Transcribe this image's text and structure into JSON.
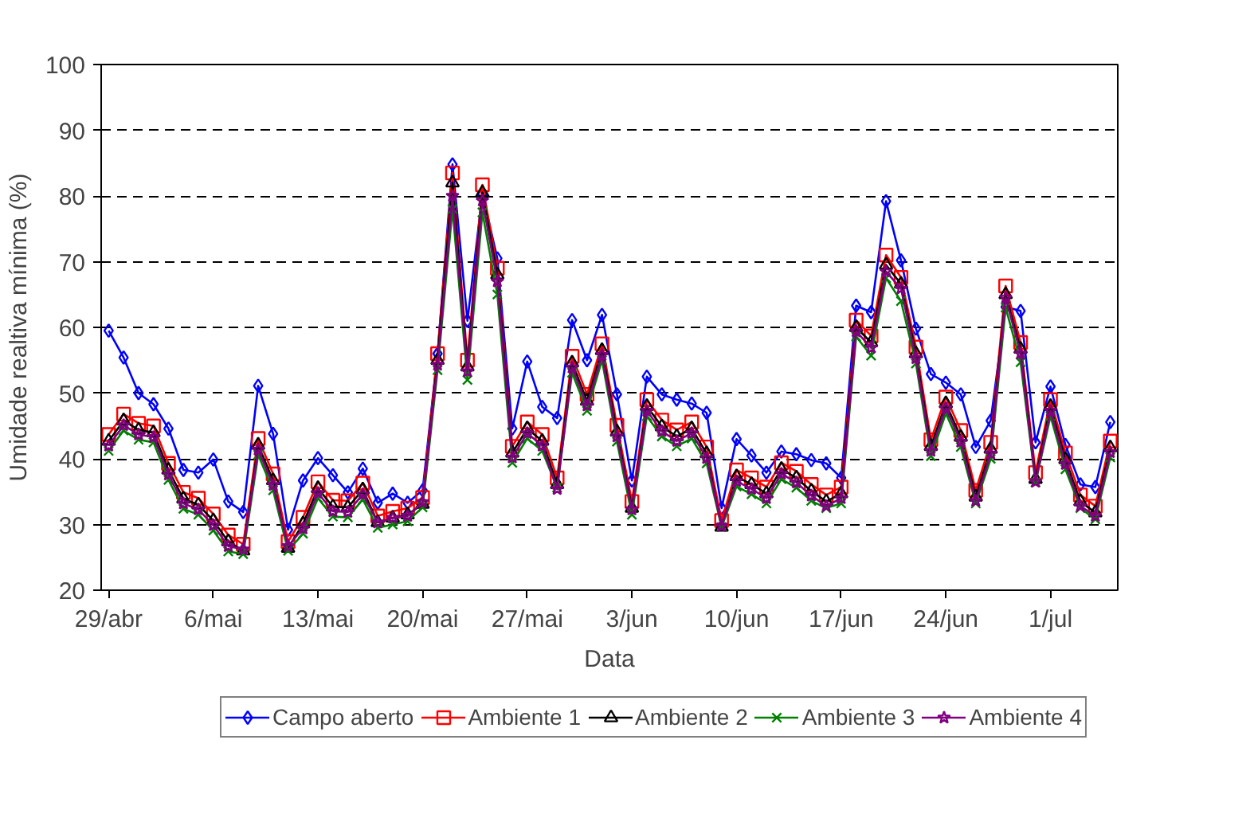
{
  "chart_data": {
    "type": "line",
    "xlabel": "Data",
    "ylabel": "Umidade realtiva mínima (%)",
    "categories": [
      "29/abr",
      null,
      null,
      null,
      null,
      null,
      null,
      "6/mai",
      null,
      null,
      null,
      null,
      null,
      null,
      "13/mai",
      null,
      null,
      null,
      null,
      null,
      null,
      "20/mai",
      null,
      null,
      null,
      null,
      null,
      null,
      "27/mai",
      null,
      null,
      null,
      null,
      null,
      null,
      "3/jun",
      null,
      null,
      null,
      null,
      null,
      null,
      "10/jun",
      null,
      null,
      null,
      null,
      null,
      null,
      "17/jun",
      null,
      null,
      null,
      null,
      null,
      null,
      "24/jun",
      null,
      null,
      null,
      null,
      null,
      null,
      "1/jul",
      null,
      null,
      null,
      null
    ],
    "ylim": [
      20,
      100
    ],
    "yticks": [
      20,
      30,
      40,
      50,
      60,
      70,
      80,
      90,
      100
    ],
    "grid": "y",
    "legend": "bottom",
    "line_style": "solid",
    "series": [
      {
        "name": "Campo aberto",
        "color": "#0000ff",
        "marker": "diamond",
        "values": [
          59.5,
          55.4,
          50,
          48.3,
          44.6,
          38.3,
          37.9,
          39.9,
          33.5,
          31.9,
          51.1,
          43.8,
          29.2,
          36.7,
          40.1,
          37.5,
          34.9,
          38.5,
          33.3,
          34.7,
          33.3,
          35.2,
          56,
          84.8,
          61,
          80.3,
          70.5,
          44.6,
          54.8,
          47.9,
          46.2,
          61.1,
          55,
          61.9,
          49.8,
          36.7,
          52.5,
          49.8,
          49,
          48.4,
          47,
          32.5,
          43,
          40.5,
          37.9,
          41.1,
          40.7,
          39.8,
          39.3,
          37.1,
          63.3,
          62.3,
          79.2,
          70.2,
          59.8,
          52.9,
          51.6,
          49.8,
          41.8,
          45.8,
          63.1,
          62.5,
          42.5,
          51,
          42.1,
          36.1,
          35.7,
          45.6
        ]
      },
      {
        "name": "Ambiente 1",
        "color": "#ff0000",
        "marker": "square",
        "values": [
          43.7,
          46.8,
          45.4,
          45,
          39.3,
          34.9,
          34,
          31.6,
          28.4,
          27,
          43.1,
          37.7,
          27.4,
          31.1,
          36.5,
          33.7,
          33.6,
          36.3,
          31.3,
          32,
          32.5,
          34.1,
          56,
          83.5,
          55,
          81.7,
          69,
          41.9,
          45.6,
          43.7,
          37.1,
          55.6,
          49.8,
          57.5,
          45.1,
          33.5,
          49,
          45.9,
          44.4,
          45.6,
          41.8,
          30.6,
          38.3,
          37.1,
          35.7,
          39.4,
          38.1,
          36.1,
          34.5,
          35.7,
          61.1,
          58.7,
          71,
          67.6,
          57,
          42.9,
          49.4,
          44.3,
          35.2,
          42.5,
          66.3,
          57.7,
          37.9,
          49,
          40.9,
          34.5,
          32.8,
          42.7
        ]
      },
      {
        "name": "Ambiente 2",
        "color": "#000000",
        "marker": "triangle",
        "values": [
          42.7,
          45.8,
          44.4,
          44,
          38.3,
          33.9,
          33,
          30.6,
          27.4,
          26,
          42.1,
          36.7,
          26.4,
          30.1,
          35.5,
          32.7,
          32.6,
          35.3,
          30.3,
          31,
          31.5,
          33.1,
          55,
          82,
          54,
          80.5,
          68,
          40.9,
          44.6,
          42.7,
          36.1,
          54.6,
          48.8,
          56.5,
          44.1,
          32.5,
          48,
          44.9,
          43.4,
          44.6,
          40.8,
          29.6,
          37.3,
          36.1,
          34.7,
          38.4,
          37.1,
          35.1,
          33.5,
          34.7,
          60,
          57.7,
          69.5,
          66.6,
          56,
          41.9,
          48.4,
          43.3,
          34.2,
          41.5,
          65,
          56.7,
          36.9,
          48,
          39.9,
          33.5,
          31.8,
          41.7
        ]
      },
      {
        "name": "Ambiente 3",
        "color": "#008000",
        "marker": "cross",
        "values": [
          41.2,
          44.3,
          42.9,
          42.5,
          36.8,
          32.4,
          31.5,
          29.1,
          25.9,
          25.5,
          40.6,
          35.2,
          26,
          28.6,
          34,
          31.2,
          31.1,
          33.8,
          29.5,
          30,
          30.5,
          32.6,
          53.5,
          78,
          52,
          77.5,
          65,
          39.4,
          43.1,
          41.2,
          35.6,
          53.1,
          47.3,
          55,
          42.6,
          31.5,
          46.5,
          43.4,
          41.9,
          43.1,
          39.3,
          29.6,
          35.8,
          34.6,
          33.2,
          36.9,
          35.6,
          33.6,
          32.5,
          33.2,
          58.6,
          55.7,
          67.5,
          64,
          54.5,
          40.4,
          46.9,
          41.8,
          33.2,
          40,
          63,
          54.7,
          36.4,
          46.5,
          38.4,
          32.5,
          30.8,
          40.2
        ]
      },
      {
        "name": "Ambiente 4",
        "color": "#800080",
        "marker": "star",
        "values": [
          42,
          45.1,
          43.7,
          43.3,
          37.6,
          33.2,
          32.3,
          29.9,
          26.7,
          26.2,
          41.4,
          36,
          26.7,
          29.4,
          34.8,
          32,
          31.9,
          34.6,
          30.3,
          31,
          31.3,
          33.4,
          54.3,
          80,
          53.3,
          79.3,
          67,
          40.2,
          43.9,
          42,
          35.4,
          53.9,
          48.1,
          55.8,
          43.4,
          32.3,
          47.3,
          44.2,
          42.7,
          43.9,
          40.1,
          29.8,
          36.6,
          35.4,
          34,
          37.7,
          36.4,
          34.4,
          32.8,
          34,
          59.4,
          56.9,
          68.5,
          65.9,
          55.3,
          41.2,
          47.7,
          42.6,
          33.6,
          40.8,
          64.5,
          56,
          36.5,
          47.3,
          39.2,
          32.8,
          31.3,
          41
        ]
      }
    ]
  }
}
